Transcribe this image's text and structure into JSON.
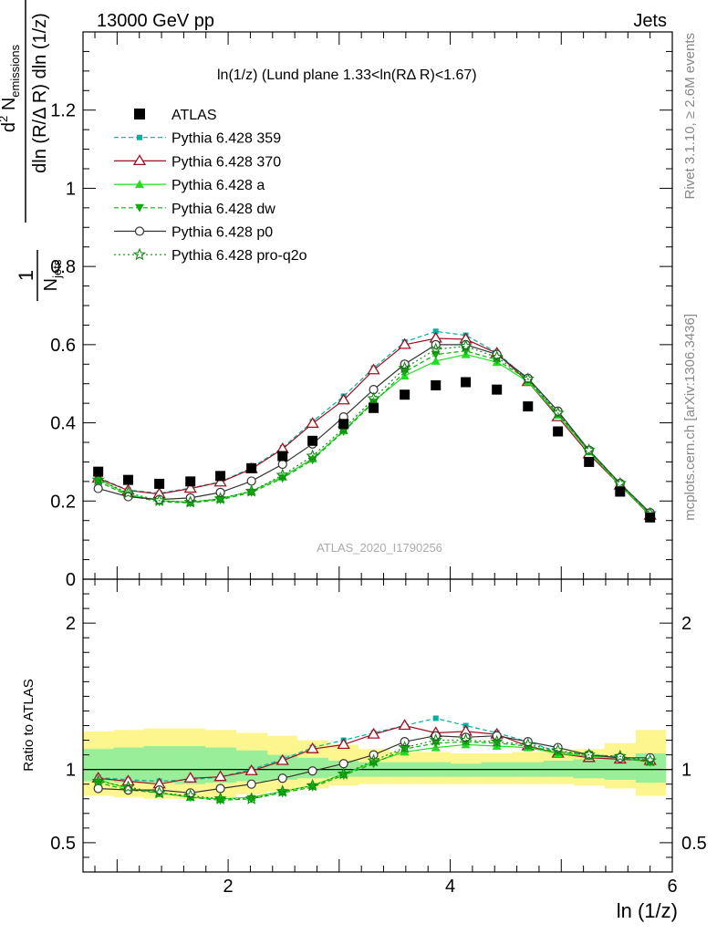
{
  "header": {
    "left": "13000 GeV pp",
    "right": "Jets"
  },
  "side_labels": {
    "rivet": "Rivet 3.1.10, ≥ 2.6M events",
    "mcplots": "mcplots.cern.ch [arXiv:1306.3436]"
  },
  "analysis_id": "ATLAS_2020_I1790256",
  "plot_title": "ln(1/z) (Lund plane 1.33<ln(RΔ R)<1.67)",
  "chart_data": [
    {
      "type": "line",
      "panel": "main",
      "xlabel": "ln (1/z)",
      "ylabel": "1/N_jets d²N_emissions / dln(R/ΔR) dln(1/z)",
      "ylim": [
        0,
        1.4
      ],
      "yticks": [
        "0",
        "0.2",
        "0.4",
        "0.6",
        "0.8",
        "1",
        "1.2"
      ],
      "xlim": [
        0.693,
        6.0
      ],
      "xticks": [
        "2",
        "4",
        "6"
      ],
      "legend_position": "top-left",
      "x": [
        0.83,
        1.1,
        1.38,
        1.66,
        1.93,
        2.21,
        2.49,
        2.76,
        3.04,
        3.31,
        3.59,
        3.87,
        4.14,
        4.42,
        4.7,
        4.97,
        5.25,
        5.53,
        5.8
      ],
      "series": [
        {
          "name": "ATLAS",
          "color": "#000000",
          "marker": "square",
          "line": "none",
          "values": [
            0.275,
            0.254,
            0.244,
            0.25,
            0.264,
            0.284,
            0.315,
            0.354,
            0.397,
            0.438,
            0.472,
            0.496,
            0.504,
            0.485,
            0.442,
            0.378,
            0.3,
            0.224,
            0.158
          ]
        },
        {
          "name": "Pythia 6.428 359",
          "color": "#00b0a0",
          "marker": "small-square",
          "line": "dashed",
          "values": [
            0.26,
            0.228,
            0.22,
            0.233,
            0.249,
            0.285,
            0.336,
            0.403,
            0.468,
            0.54,
            0.607,
            0.634,
            0.624,
            0.58,
            0.51,
            0.42,
            0.33,
            0.245,
            0.166
          ]
        },
        {
          "name": "Pythia 6.428 370",
          "color": "#a01020",
          "marker": "open-triangle",
          "line": "solid",
          "values": [
            0.258,
            0.227,
            0.218,
            0.232,
            0.248,
            0.282,
            0.333,
            0.398,
            0.458,
            0.535,
            0.6,
            0.616,
            0.614,
            0.578,
            0.505,
            0.415,
            0.32,
            0.24,
            0.163
          ]
        },
        {
          "name": "Pythia 6.428 a",
          "color": "#22dd22",
          "marker": "triangle",
          "line": "solid",
          "values": [
            0.256,
            0.216,
            0.201,
            0.197,
            0.206,
            0.225,
            0.262,
            0.308,
            0.38,
            0.455,
            0.52,
            0.558,
            0.575,
            0.555,
            0.505,
            0.42,
            0.326,
            0.24,
            0.165
          ]
        },
        {
          "name": "Pythia 6.428 dw",
          "color": "#11aa11",
          "marker": "down-triangle",
          "line": "dashed",
          "values": [
            0.25,
            0.214,
            0.198,
            0.195,
            0.203,
            0.222,
            0.258,
            0.305,
            0.378,
            0.452,
            0.53,
            0.575,
            0.584,
            0.561,
            0.51,
            0.423,
            0.328,
            0.242,
            0.166
          ]
        },
        {
          "name": "Pythia 6.428 p0",
          "color": "#333333",
          "marker": "open-circle",
          "line": "solid",
          "values": [
            0.232,
            0.211,
            0.204,
            0.208,
            0.222,
            0.251,
            0.294,
            0.346,
            0.415,
            0.485,
            0.55,
            0.6,
            0.6,
            0.575,
            0.514,
            0.43,
            0.33,
            0.245,
            0.17
          ]
        },
        {
          "name": "Pythia 6.428 pro-q2o",
          "color": "#118811",
          "marker": "open-star",
          "line": "dotted",
          "values": [
            0.254,
            0.221,
            0.201,
            0.197,
            0.206,
            0.225,
            0.266,
            0.315,
            0.385,
            0.462,
            0.54,
            0.588,
            0.596,
            0.568,
            0.512,
            0.425,
            0.33,
            0.245,
            0.168
          ]
        }
      ]
    },
    {
      "type": "line",
      "panel": "ratio",
      "ylabel": "Ratio to ATLAS",
      "xlabel": "ln (1/z)",
      "ylim": [
        0.3,
        2.3
      ],
      "yticks": [
        "0.5",
        "1",
        "2"
      ],
      "reference_line": 1,
      "uncertainty_bands": {
        "bin_edges": [
          0.69,
          0.97,
          1.24,
          1.52,
          1.79,
          2.07,
          2.35,
          2.62,
          2.9,
          3.17,
          3.45,
          3.73,
          4.0,
          4.28,
          4.56,
          4.84,
          5.11,
          5.39,
          5.67,
          5.94
        ],
        "yellow_lo": [
          0.82,
          0.81,
          0.8,
          0.8,
          0.81,
          0.83,
          0.85,
          0.87,
          0.89,
          0.9,
          0.9,
          0.9,
          0.9,
          0.9,
          0.9,
          0.9,
          0.89,
          0.87,
          0.82
        ],
        "yellow_hi": [
          1.26,
          1.27,
          1.28,
          1.28,
          1.27,
          1.25,
          1.23,
          1.2,
          1.17,
          1.14,
          1.12,
          1.12,
          1.11,
          1.11,
          1.12,
          1.13,
          1.14,
          1.18,
          1.27
        ],
        "green_lo": [
          0.92,
          0.91,
          0.91,
          0.9,
          0.91,
          0.92,
          0.93,
          0.94,
          0.95,
          0.95,
          0.95,
          0.95,
          0.95,
          0.95,
          0.95,
          0.95,
          0.94,
          0.93,
          0.91
        ],
        "green_hi": [
          1.14,
          1.15,
          1.16,
          1.16,
          1.15,
          1.13,
          1.1,
          1.08,
          1.06,
          1.05,
          1.05,
          1.05,
          1.04,
          1.05,
          1.05,
          1.06,
          1.07,
          1.08,
          1.11
        ]
      },
      "x": [
        0.83,
        1.1,
        1.38,
        1.66,
        1.93,
        2.21,
        2.49,
        2.76,
        3.04,
        3.31,
        3.59,
        3.87,
        4.14,
        4.42,
        4.7,
        4.97,
        5.25,
        5.53,
        5.8
      ],
      "series": [
        {
          "name": "Pythia 6.428 359",
          "values": [
            0.945,
            0.93,
            0.92,
            0.93,
            0.95,
            1.0,
            1.07,
            1.15,
            1.2,
            1.25,
            1.3,
            1.35,
            1.3,
            1.25,
            1.19,
            1.12,
            1.1,
            1.09,
            1.05
          ]
        },
        {
          "name": "Pythia 6.428 370",
          "values": [
            0.94,
            0.92,
            0.9,
            0.94,
            0.95,
            0.99,
            1.06,
            1.14,
            1.17,
            1.24,
            1.3,
            1.25,
            1.26,
            1.24,
            1.16,
            1.11,
            1.08,
            1.07,
            1.06
          ]
        },
        {
          "name": "Pythia 6.428 a",
          "values": [
            0.93,
            0.87,
            0.84,
            0.81,
            0.8,
            0.81,
            0.85,
            0.89,
            0.97,
            1.05,
            1.12,
            1.15,
            1.17,
            1.16,
            1.15,
            1.11,
            1.09,
            1.08,
            1.05
          ]
        },
        {
          "name": "Pythia 6.428 dw",
          "values": [
            0.91,
            0.86,
            0.84,
            0.81,
            0.79,
            0.8,
            0.84,
            0.88,
            0.96,
            1.04,
            1.14,
            1.18,
            1.19,
            1.18,
            1.16,
            1.12,
            1.1,
            1.08,
            1.05
          ]
        },
        {
          "name": "Pythia 6.428 p0",
          "values": [
            0.87,
            0.86,
            0.86,
            0.84,
            0.87,
            0.9,
            0.94,
            0.99,
            1.04,
            1.1,
            1.19,
            1.23,
            1.22,
            1.23,
            1.19,
            1.15,
            1.1,
            1.08,
            1.08
          ]
        },
        {
          "name": "Pythia 6.428 pro-q2o",
          "values": [
            0.92,
            0.88,
            0.84,
            0.82,
            0.8,
            0.8,
            0.85,
            0.89,
            0.97,
            1.06,
            1.15,
            1.2,
            1.2,
            1.19,
            1.17,
            1.13,
            1.1,
            1.09,
            1.06
          ]
        }
      ]
    }
  ]
}
